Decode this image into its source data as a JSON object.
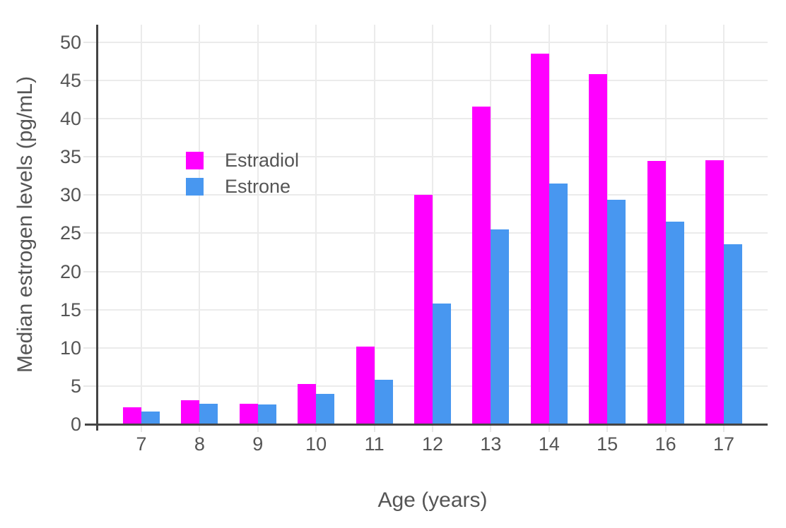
{
  "chart_data": {
    "type": "bar",
    "title": "",
    "xlabel": "Age (years)",
    "ylabel": "Median estrogen levels (pg/mL)",
    "categories": [
      7,
      8,
      9,
      10,
      11,
      12,
      13,
      14,
      15,
      16,
      17
    ],
    "series": [
      {
        "name": "Estradiol",
        "color": "#ff00ff",
        "values": [
          2.2,
          3.1,
          2.7,
          5.3,
          10.2,
          30.0,
          41.6,
          48.5,
          45.8,
          34.5,
          34.6
        ]
      },
      {
        "name": "Estrone",
        "color": "#4897f0",
        "values": [
          1.7,
          2.7,
          2.6,
          4.0,
          5.8,
          15.8,
          25.5,
          31.5,
          29.4,
          26.5,
          23.6
        ]
      }
    ],
    "yticks": [
      0,
      5,
      10,
      15,
      20,
      25,
      30,
      35,
      40,
      45,
      50
    ],
    "ylim": [
      0,
      52.3
    ],
    "grid": true,
    "legend_position": "inside-top-left",
    "colors": {
      "background": "#ffffff",
      "grid": "#ebebeb",
      "axis": "#444444",
      "text": "#555555"
    }
  }
}
